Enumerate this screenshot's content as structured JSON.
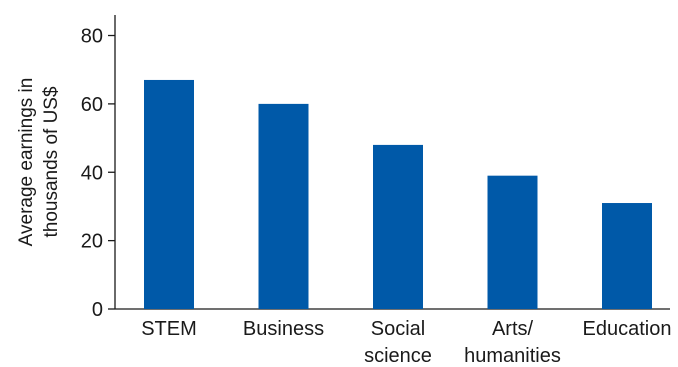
{
  "chart_data": {
    "type": "bar",
    "ylabel_lines": [
      "Average earnings in",
      "thousands of US$"
    ],
    "categories": [
      [
        "STEM"
      ],
      [
        "Business"
      ],
      [
        "Social",
        "science"
      ],
      [
        "Arts/",
        "humanities"
      ],
      [
        "Education"
      ]
    ],
    "values": [
      67,
      60,
      48,
      39,
      31
    ],
    "yticks": [
      0,
      20,
      40,
      60,
      80
    ],
    "ylim": [
      0,
      86
    ],
    "bar_color": "#0059a8",
    "grid": false,
    "legend": "none"
  }
}
